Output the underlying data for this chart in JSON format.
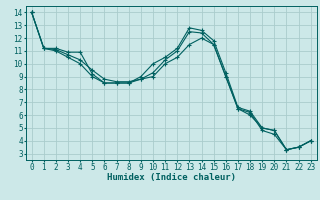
{
  "xlabel": "Humidex (Indice chaleur)",
  "ylabel": "",
  "xlim": [
    -0.5,
    23.5
  ],
  "ylim": [
    2.5,
    14.5
  ],
  "xticks": [
    0,
    1,
    2,
    3,
    4,
    5,
    6,
    7,
    8,
    9,
    10,
    11,
    12,
    13,
    14,
    15,
    16,
    17,
    18,
    19,
    20,
    21,
    22,
    23
  ],
  "yticks": [
    3,
    4,
    5,
    6,
    7,
    8,
    9,
    10,
    11,
    12,
    13,
    14
  ],
  "bg_color": "#cce8e8",
  "grid_color": "#aacccc",
  "line_color": "#006060",
  "series": [
    [
      14,
      11.2,
      11.2,
      10.9,
      10.9,
      9.2,
      8.5,
      8.5,
      8.5,
      9.0,
      10.0,
      10.5,
      11.2,
      12.8,
      12.6,
      11.8,
      9.3,
      6.6,
      6.3,
      5.0,
      4.8,
      3.3,
      3.5,
      4.0
    ],
    [
      14,
      11.2,
      11.1,
      10.7,
      10.3,
      9.5,
      8.8,
      8.6,
      8.6,
      8.8,
      9.3,
      10.3,
      11.0,
      12.5,
      12.4,
      11.5,
      9.0,
      6.5,
      6.2,
      4.8,
      4.5,
      3.3,
      3.5,
      4.0
    ],
    [
      14,
      11.2,
      11.0,
      10.5,
      10.0,
      9.0,
      8.5,
      8.5,
      8.5,
      8.8,
      9.0,
      10.0,
      10.5,
      11.5,
      12.0,
      11.5,
      9.0,
      6.5,
      6.0,
      5.0,
      4.8,
      3.3,
      3.5,
      4.0
    ]
  ],
  "title_fontsize": 7,
  "axis_fontsize": 6.5,
  "tick_fontsize": 5.5
}
